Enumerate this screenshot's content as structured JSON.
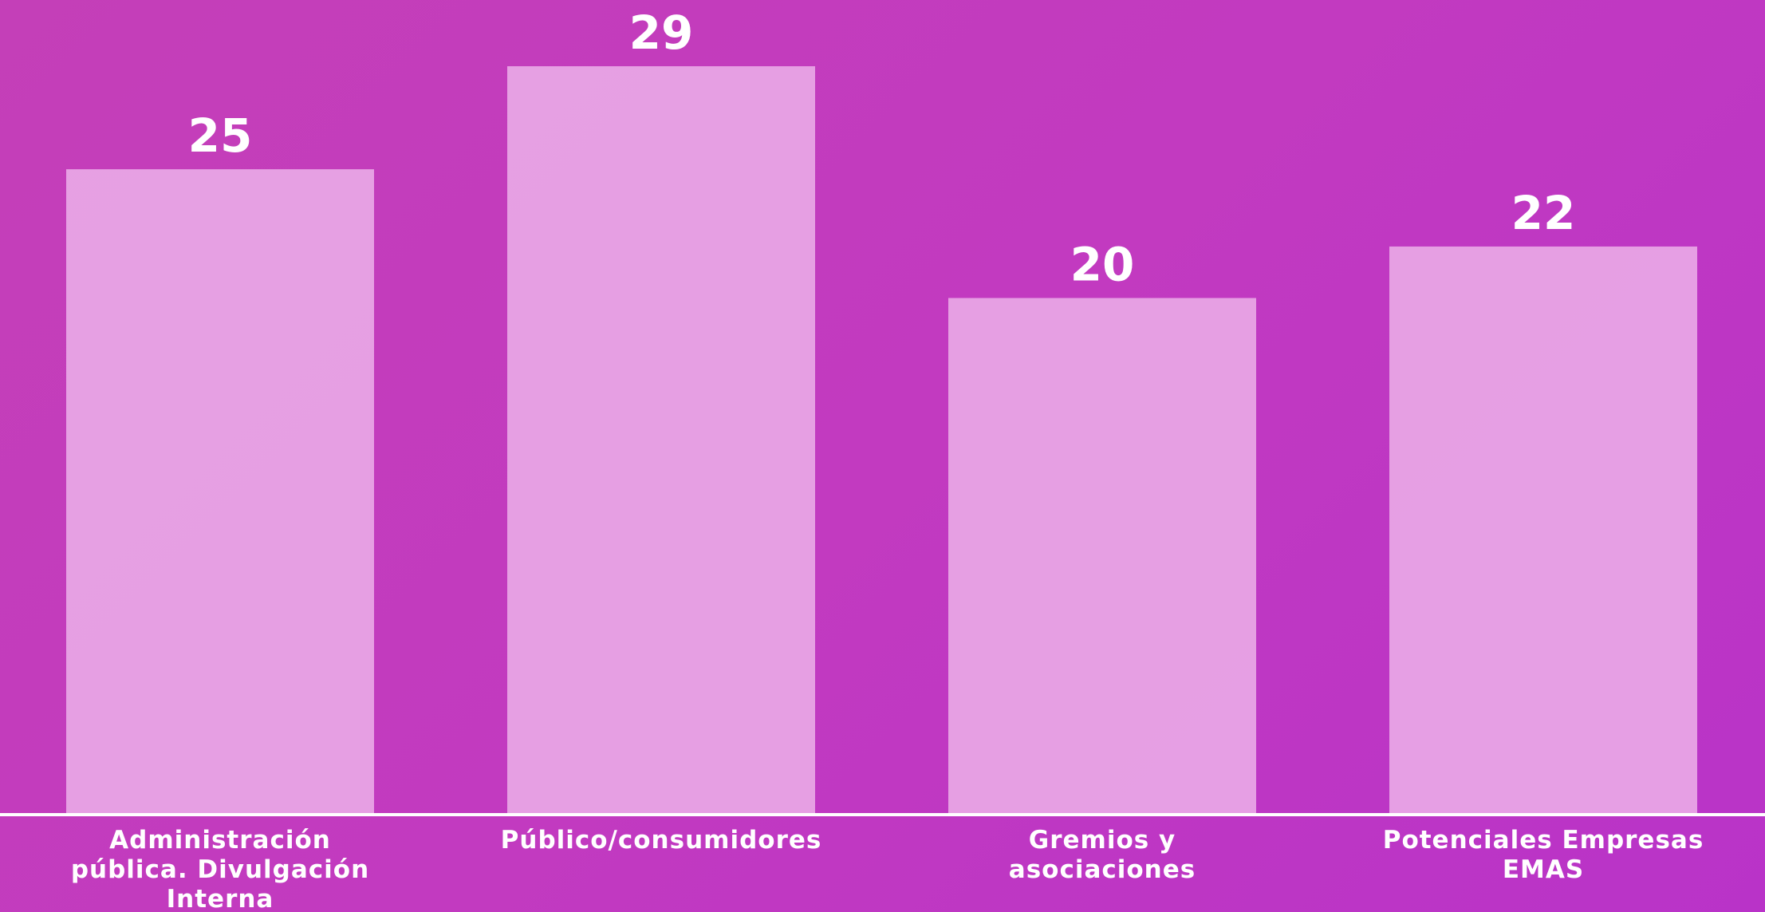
{
  "chart_data": {
    "type": "bar",
    "categories": [
      [
        "Administración",
        "pública. Divulgación",
        "Interna"
      ],
      [
        "Público/consumidores"
      ],
      [
        "Gremios y",
        "asociaciones"
      ],
      [
        "Potenciales Empresas",
        "EMAS"
      ]
    ],
    "values": [
      25,
      29,
      20,
      22
    ],
    "ylim": [
      0,
      29
    ],
    "grid": false,
    "legend": "none",
    "title": "",
    "xlabel": "",
    "ylabel": "",
    "colors": {
      "bar": "#e9a8e6",
      "text": "#ffffff",
      "background_start": "#c43fb8",
      "background_end": "#b933c8"
    }
  }
}
